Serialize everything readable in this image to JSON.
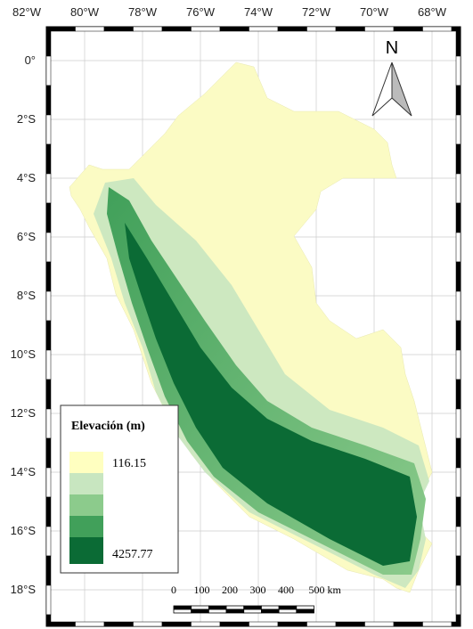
{
  "map": {
    "longitude_labels": [
      "82°W",
      "80°W",
      "78°W",
      "76°W",
      "74°W",
      "72°W",
      "70°W",
      "68°W"
    ],
    "latitude_labels": [
      "0°",
      "2°S",
      "4°S",
      "6°S",
      "8°S",
      "10°S",
      "12°S",
      "14°S",
      "16°S",
      "18°S"
    ],
    "north_label": "N",
    "legend": {
      "title": "Elevación (m)",
      "labels": [
        "116.15",
        "4257.77"
      ]
    },
    "scale_bar": {
      "labels": [
        "0",
        "100",
        "200",
        "300",
        "400",
        "500 km"
      ]
    }
  }
}
